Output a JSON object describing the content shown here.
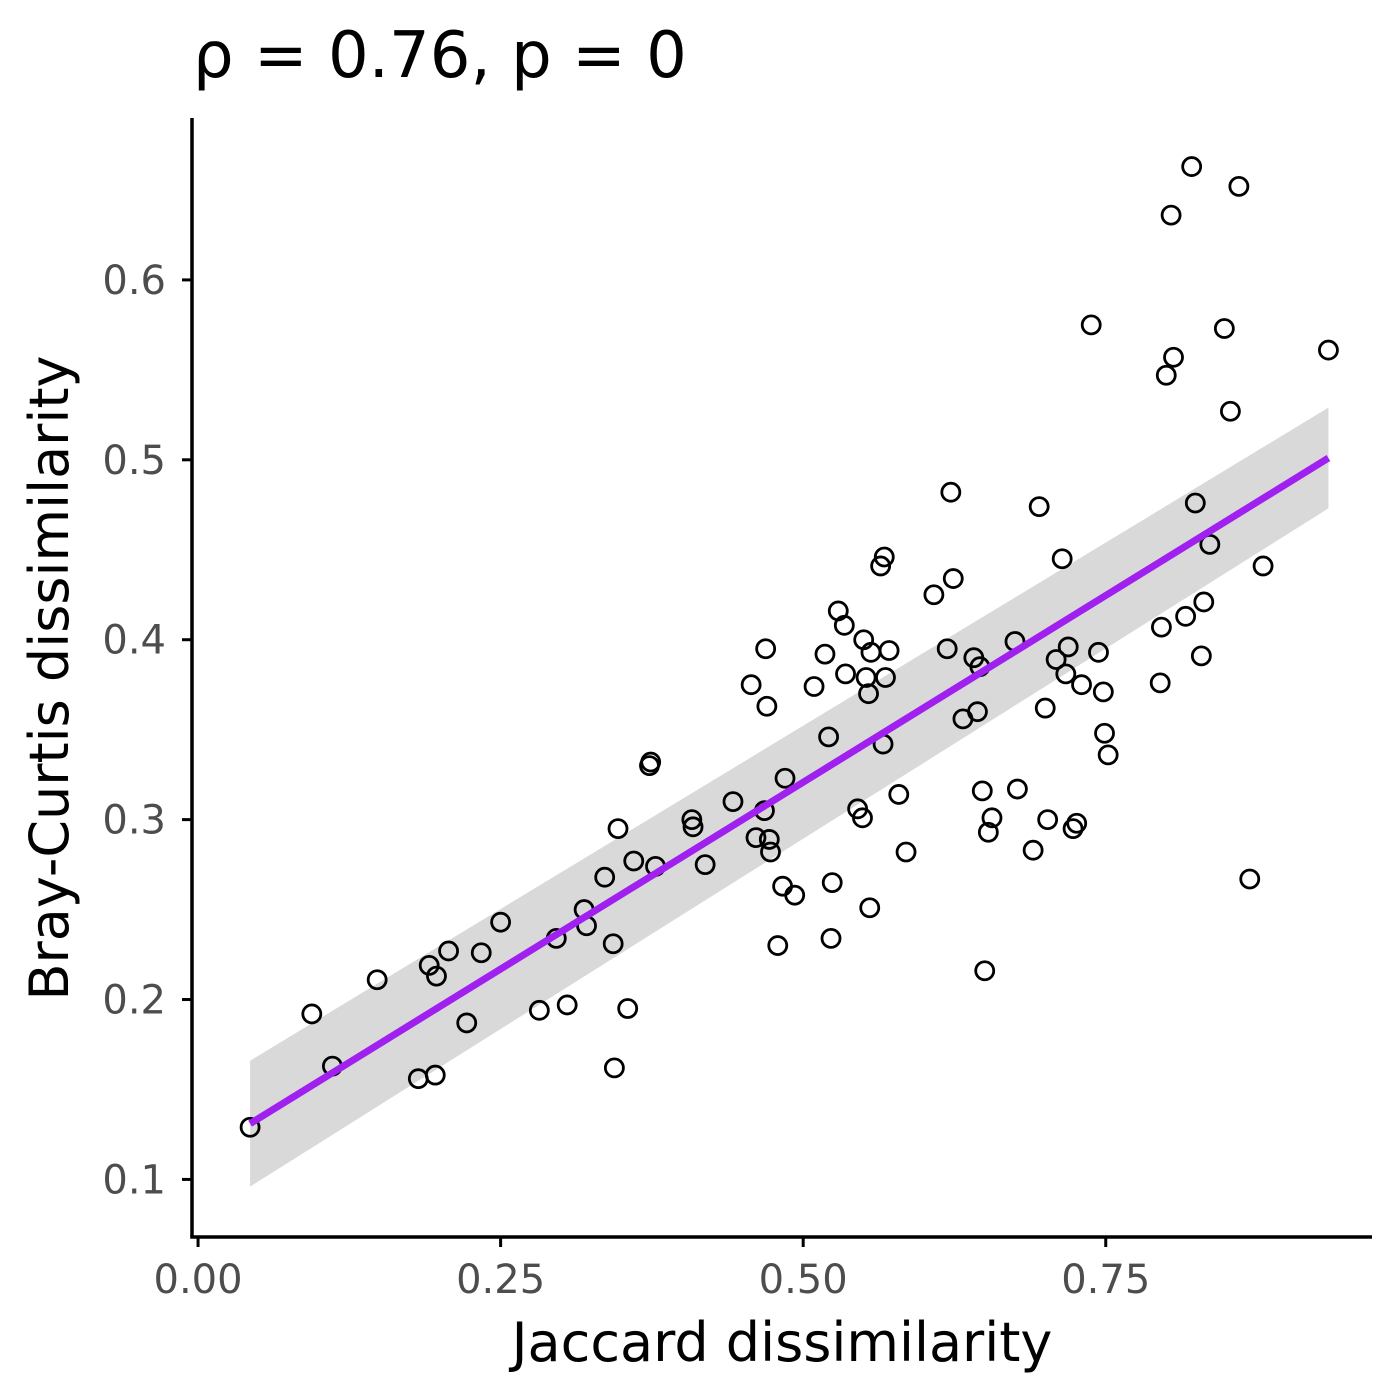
{
  "chart_data": {
    "type": "scatter",
    "title": "ρ = 0.76, p = 0",
    "xlabel": "Jaccard dissimilarity",
    "ylabel": "Bray-Curtis dissimilarity",
    "xlim": [
      -0.005,
      0.97
    ],
    "ylim": [
      0.068,
      0.69
    ],
    "xticks": [
      0.0,
      0.25,
      0.5,
      0.75
    ],
    "xtick_labels": [
      "0.00",
      "0.25",
      "0.50",
      "0.75"
    ],
    "yticks": [
      0.1,
      0.2,
      0.3,
      0.4,
      0.5,
      0.6
    ],
    "ytick_labels": [
      "0.1",
      "0.2",
      "0.3",
      "0.4",
      "0.5",
      "0.6"
    ],
    "grid": false,
    "legend": "none",
    "colors": {
      "fit_line": "#a020f0",
      "confidence_band": "#d9d9d9",
      "points": "#000000"
    },
    "fit": {
      "method": "linear",
      "x_start": 0.043,
      "y_start": 0.131,
      "x_end": 0.934,
      "y_end": 0.501,
      "ci_start": [
        0.096,
        0.166
      ],
      "ci_end": [
        0.473,
        0.529
      ]
    },
    "points": [
      {
        "x": 0.043,
        "y": 0.129
      },
      {
        "x": 0.094,
        "y": 0.192
      },
      {
        "x": 0.111,
        "y": 0.163
      },
      {
        "x": 0.148,
        "y": 0.211
      },
      {
        "x": 0.182,
        "y": 0.156
      },
      {
        "x": 0.191,
        "y": 0.219
      },
      {
        "x": 0.196,
        "y": 0.158
      },
      {
        "x": 0.197,
        "y": 0.213
      },
      {
        "x": 0.207,
        "y": 0.227
      },
      {
        "x": 0.222,
        "y": 0.187
      },
      {
        "x": 0.234,
        "y": 0.226
      },
      {
        "x": 0.25,
        "y": 0.243
      },
      {
        "x": 0.282,
        "y": 0.194
      },
      {
        "x": 0.296,
        "y": 0.234
      },
      {
        "x": 0.305,
        "y": 0.197
      },
      {
        "x": 0.319,
        "y": 0.25
      },
      {
        "x": 0.321,
        "y": 0.241
      },
      {
        "x": 0.336,
        "y": 0.268
      },
      {
        "x": 0.343,
        "y": 0.231
      },
      {
        "x": 0.344,
        "y": 0.162
      },
      {
        "x": 0.347,
        "y": 0.295
      },
      {
        "x": 0.355,
        "y": 0.195
      },
      {
        "x": 0.36,
        "y": 0.277
      },
      {
        "x": 0.373,
        "y": 0.33
      },
      {
        "x": 0.374,
        "y": 0.332
      },
      {
        "x": 0.378,
        "y": 0.274
      },
      {
        "x": 0.408,
        "y": 0.3
      },
      {
        "x": 0.409,
        "y": 0.296
      },
      {
        "x": 0.419,
        "y": 0.275
      },
      {
        "x": 0.442,
        "y": 0.31
      },
      {
        "x": 0.457,
        "y": 0.375
      },
      {
        "x": 0.461,
        "y": 0.29
      },
      {
        "x": 0.468,
        "y": 0.305
      },
      {
        "x": 0.469,
        "y": 0.395
      },
      {
        "x": 0.47,
        "y": 0.363
      },
      {
        "x": 0.472,
        "y": 0.289
      },
      {
        "x": 0.473,
        "y": 0.282
      },
      {
        "x": 0.479,
        "y": 0.23
      },
      {
        "x": 0.483,
        "y": 0.263
      },
      {
        "x": 0.485,
        "y": 0.323
      },
      {
        "x": 0.493,
        "y": 0.258
      },
      {
        "x": 0.509,
        "y": 0.374
      },
      {
        "x": 0.518,
        "y": 0.392
      },
      {
        "x": 0.521,
        "y": 0.346
      },
      {
        "x": 0.523,
        "y": 0.234
      },
      {
        "x": 0.524,
        "y": 0.265
      },
      {
        "x": 0.529,
        "y": 0.416
      },
      {
        "x": 0.534,
        "y": 0.408
      },
      {
        "x": 0.535,
        "y": 0.381
      },
      {
        "x": 0.545,
        "y": 0.306
      },
      {
        "x": 0.549,
        "y": 0.301
      },
      {
        "x": 0.55,
        "y": 0.4
      },
      {
        "x": 0.552,
        "y": 0.379
      },
      {
        "x": 0.554,
        "y": 0.37
      },
      {
        "x": 0.555,
        "y": 0.251
      },
      {
        "x": 0.556,
        "y": 0.393
      },
      {
        "x": 0.564,
        "y": 0.441
      },
      {
        "x": 0.566,
        "y": 0.342
      },
      {
        "x": 0.567,
        "y": 0.446
      },
      {
        "x": 0.568,
        "y": 0.379
      },
      {
        "x": 0.571,
        "y": 0.394
      },
      {
        "x": 0.579,
        "y": 0.314
      },
      {
        "x": 0.585,
        "y": 0.282
      },
      {
        "x": 0.608,
        "y": 0.425
      },
      {
        "x": 0.619,
        "y": 0.395
      },
      {
        "x": 0.622,
        "y": 0.482
      },
      {
        "x": 0.624,
        "y": 0.434
      },
      {
        "x": 0.632,
        "y": 0.356
      },
      {
        "x": 0.641,
        "y": 0.39
      },
      {
        "x": 0.644,
        "y": 0.36
      },
      {
        "x": 0.646,
        "y": 0.385
      },
      {
        "x": 0.648,
        "y": 0.316
      },
      {
        "x": 0.65,
        "y": 0.216
      },
      {
        "x": 0.653,
        "y": 0.293
      },
      {
        "x": 0.656,
        "y": 0.301
      },
      {
        "x": 0.675,
        "y": 0.399
      },
      {
        "x": 0.677,
        "y": 0.317
      },
      {
        "x": 0.69,
        "y": 0.283
      },
      {
        "x": 0.695,
        "y": 0.474
      },
      {
        "x": 0.7,
        "y": 0.362
      },
      {
        "x": 0.702,
        "y": 0.3
      },
      {
        "x": 0.709,
        "y": 0.389
      },
      {
        "x": 0.714,
        "y": 0.445
      },
      {
        "x": 0.717,
        "y": 0.381
      },
      {
        "x": 0.719,
        "y": 0.396
      },
      {
        "x": 0.723,
        "y": 0.295
      },
      {
        "x": 0.726,
        "y": 0.298
      },
      {
        "x": 0.73,
        "y": 0.375
      },
      {
        "x": 0.738,
        "y": 0.575
      },
      {
        "x": 0.744,
        "y": 0.393
      },
      {
        "x": 0.748,
        "y": 0.371
      },
      {
        "x": 0.749,
        "y": 0.348
      },
      {
        "x": 0.752,
        "y": 0.336
      },
      {
        "x": 0.795,
        "y": 0.376
      },
      {
        "x": 0.796,
        "y": 0.407
      },
      {
        "x": 0.8,
        "y": 0.547
      },
      {
        "x": 0.804,
        "y": 0.636
      },
      {
        "x": 0.806,
        "y": 0.557
      },
      {
        "x": 0.816,
        "y": 0.413
      },
      {
        "x": 0.821,
        "y": 0.663
      },
      {
        "x": 0.824,
        "y": 0.476
      },
      {
        "x": 0.829,
        "y": 0.391
      },
      {
        "x": 0.831,
        "y": 0.421
      },
      {
        "x": 0.836,
        "y": 0.453
      },
      {
        "x": 0.848,
        "y": 0.573
      },
      {
        "x": 0.853,
        "y": 0.527
      },
      {
        "x": 0.86,
        "y": 0.652
      },
      {
        "x": 0.869,
        "y": 0.267
      },
      {
        "x": 0.88,
        "y": 0.441
      },
      {
        "x": 0.934,
        "y": 0.561
      }
    ]
  }
}
